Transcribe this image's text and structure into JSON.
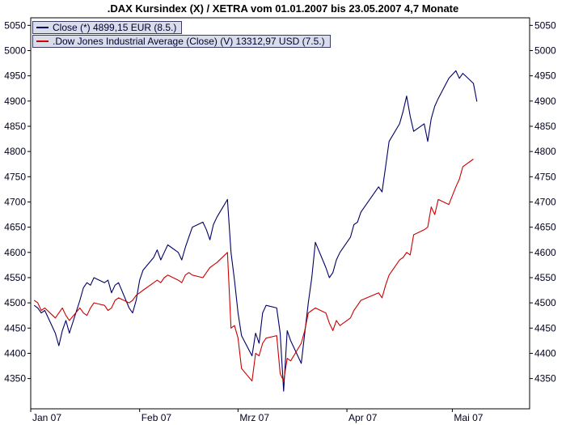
{
  "title": ".DAX Kursindex (X) / XETRA vom 01.01.2007 bis 23.05.2007 4,7 Monate",
  "chart_data": {
    "type": "line",
    "title": ".DAX Kursindex (X) / XETRA vom 01.01.2007 bis 23.05.2007 4,7 Monate",
    "legend": [
      {
        "label": "Close (*) 4899,15 EUR (8.5.)"
      },
      {
        "label": ".Dow Jones Industrial Average (Close) (V) 13312,97 USD (7.5.)"
      }
    ],
    "x_axis": {
      "unit": "days since 01.01.2007",
      "range": [
        0,
        142
      ],
      "ticks": [
        {
          "day": 0,
          "label": "Jan 07"
        },
        {
          "day": 31,
          "label": "Feb 07"
        },
        {
          "day": 59,
          "label": "Mrz 07"
        },
        {
          "day": 90,
          "label": "Apr 07"
        },
        {
          "day": 120,
          "label": "Mai 07"
        }
      ]
    },
    "y_axis": {
      "range": [
        4290,
        5065
      ],
      "tick_start": 4350,
      "tick_end": 5050,
      "tick_step": 50
    },
    "grid": false,
    "legend_position": "top-left-inside",
    "days": [
      1,
      2,
      3,
      4,
      7,
      8,
      9,
      10,
      11,
      14,
      15,
      16,
      17,
      18,
      21,
      22,
      23,
      24,
      25,
      28,
      29,
      30,
      31,
      32,
      35,
      36,
      37,
      38,
      39,
      42,
      43,
      44,
      45,
      46,
      49,
      50,
      51,
      52,
      53,
      56,
      57,
      58,
      59,
      60,
      63,
      64,
      65,
      66,
      67,
      70,
      71,
      72,
      73,
      74,
      77,
      78,
      79,
      80,
      81,
      84,
      85,
      86,
      87,
      88,
      91,
      92,
      93,
      94,
      99,
      100,
      101,
      102,
      105,
      106,
      107,
      108,
      109,
      112,
      113,
      114,
      115,
      116,
      119,
      121,
      122,
      123,
      126,
      127
    ],
    "series": [
      {
        "name": "DAX Kursindex Close (EUR)",
        "color": "#000066",
        "last_value": "4899,15 EUR (8.5.)",
        "values": [
          4495,
          4490,
          4480,
          4485,
          4440,
          4415,
          4445,
          4465,
          4440,
          4505,
          4530,
          4540,
          4535,
          4550,
          4540,
          4545,
          4520,
          4535,
          4540,
          4490,
          4480,
          4505,
          4545,
          4565,
          4590,
          4605,
          4585,
          4600,
          4615,
          4600,
          4585,
          4610,
          4630,
          4650,
          4660,
          4645,
          4625,
          4655,
          4670,
          4705,
          4600,
          4545,
          4480,
          4435,
          4395,
          4440,
          4420,
          4480,
          4495,
          4490,
          4440,
          4325,
          4445,
          4425,
          4380,
          4440,
          4500,
          4550,
          4620,
          4570,
          4550,
          4560,
          4585,
          4600,
          4630,
          4655,
          4660,
          4680,
          4730,
          4720,
          4770,
          4820,
          4855,
          4880,
          4910,
          4870,
          4840,
          4855,
          4820,
          4865,
          4890,
          4905,
          4945,
          4960,
          4945,
          4955,
          4935,
          4899
        ]
      },
      {
        "name": "Dow Jones Industrial Average Close (USD), indexed to DAX scale",
        "color": "#cc0000",
        "last_value": "13312,97 USD (7.5.)",
        "values": [
          4505,
          4500,
          4485,
          4490,
          4470,
          4480,
          4490,
          4475,
          4465,
          4490,
          4480,
          4475,
          4490,
          4500,
          4495,
          4485,
          4490,
          4505,
          4510,
          4500,
          4505,
          4515,
          4520,
          4525,
          4540,
          4545,
          4540,
          4550,
          4555,
          4545,
          4540,
          4555,
          4560,
          4555,
          4550,
          4560,
          4570,
          4575,
          4580,
          4600,
          4450,
          4455,
          4430,
          4370,
          4345,
          4400,
          4395,
          4420,
          4430,
          4435,
          4360,
          4345,
          4390,
          4385,
          4420,
          4445,
          4480,
          4485,
          4490,
          4480,
          4460,
          4445,
          4465,
          4455,
          4470,
          4485,
          4495,
          4505,
          4520,
          4510,
          4535,
          4555,
          4585,
          4590,
          4600,
          4595,
          4635,
          4645,
          4650,
          4690,
          4675,
          4705,
          4695,
          4730,
          4745,
          4770,
          4785
        ]
      }
    ]
  }
}
